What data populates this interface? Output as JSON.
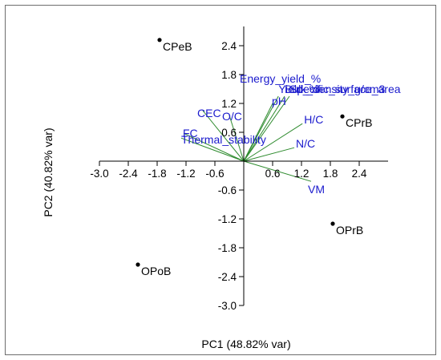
{
  "chart_data": {
    "type": "scatter",
    "subtype": "pca-biplot",
    "title": "",
    "xlabel": "PC1 (48.82% var)",
    "ylabel": "PC2 (40.82% var)",
    "xlim": [
      -3.0,
      3.0
    ],
    "ylim": [
      -3.0,
      2.8
    ],
    "x_ticks": [
      "-3.0",
      "-2.4",
      "-1.8",
      "-1.2",
      "-0.6",
      "0.6",
      "1.2",
      "1.8",
      "2.4"
    ],
    "y_ticks": [
      "2.4",
      "1.8",
      "1.2",
      "0.6",
      "-0.6",
      "-1.2",
      "-1.8",
      "-2.4",
      "-3.0"
    ],
    "grid": false,
    "colors": {
      "points": "#000000",
      "vectors": "#2e8b2e",
      "vector_labels": "#1a1acd",
      "axes": "#000000"
    },
    "points": [
      {
        "label": "CPeB",
        "x": -1.75,
        "y": 2.52
      },
      {
        "label": "CPrB",
        "x": 2.05,
        "y": 0.93
      },
      {
        "label": "OPrB",
        "x": 1.85,
        "y": -1.3
      },
      {
        "label": "OPoB",
        "x": -2.2,
        "y": -2.15
      }
    ],
    "vectors": [
      {
        "label": "Energy_yield_%",
        "x": 0.0,
        "y": 1.55
      },
      {
        "label": "Yield_%",
        "x": 0.72,
        "y": 1.35
      },
      {
        "label": "Bulk_density_g/cm3",
        "x": 0.85,
        "y": 1.35
      },
      {
        "label": "Specific_surface_area",
        "x": 0.95,
        "y": 1.35
      },
      {
        "label": "pH",
        "x": 0.6,
        "y": 1.2
      },
      {
        "label": "CEC",
        "x": -0.85,
        "y": 1.05
      },
      {
        "label": "O/C",
        "x": -0.3,
        "y": 0.95
      },
      {
        "label": "H/C",
        "x": 1.22,
        "y": 0.78
      },
      {
        "label": "N/C",
        "x": 1.05,
        "y": 0.28
      },
      {
        "label": "VM",
        "x": 1.4,
        "y": -0.42
      },
      {
        "label": "FC",
        "x": -1.25,
        "y": 0.58
      },
      {
        "label": "Thermal_stability",
        "x": -1.3,
        "y": 0.48
      }
    ]
  }
}
